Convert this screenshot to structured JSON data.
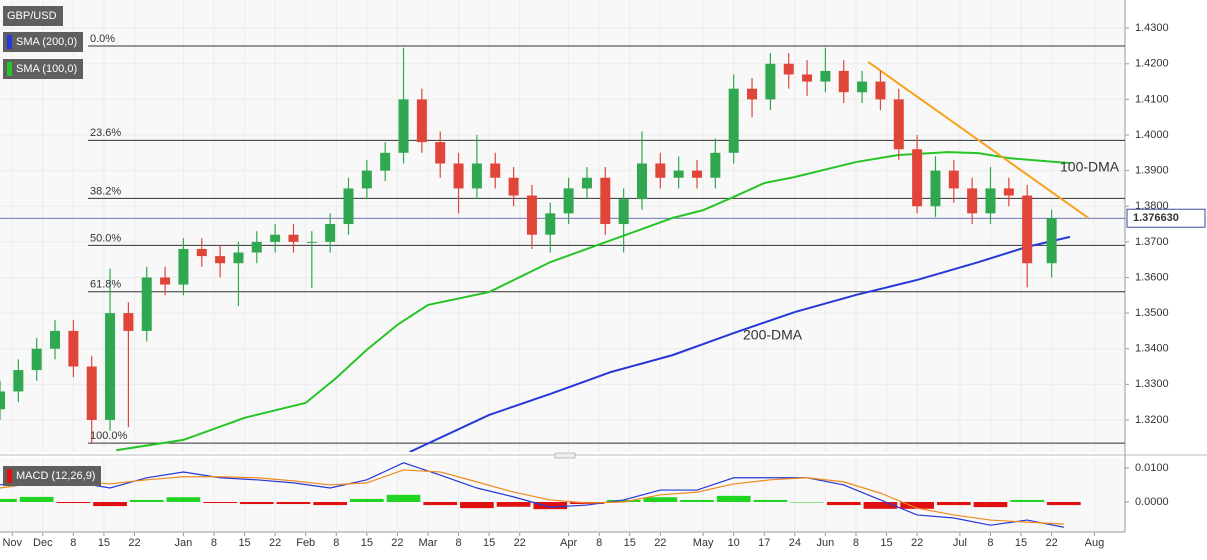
{
  "chart_data": [
    {
      "type": "candlestick",
      "title": "GBP/USD",
      "up_color": "#2fa84f",
      "down_color": "#e0453a",
      "x": [
        0,
        3,
        6,
        9,
        12,
        15,
        18,
        21,
        24,
        27,
        30,
        33,
        36,
        39,
        42,
        45,
        48,
        51,
        54,
        57,
        60,
        63,
        66,
        69,
        72,
        75,
        78,
        81,
        84,
        87,
        90,
        93,
        96,
        99,
        102,
        105,
        108,
        111,
        114,
        117,
        120,
        123,
        126,
        129,
        132,
        135,
        138,
        141,
        144,
        147,
        150,
        153,
        156,
        159,
        162,
        165,
        168,
        172
      ],
      "open": [
        1.323,
        1.328,
        1.334,
        1.34,
        1.345,
        1.335,
        1.32,
        1.35,
        1.345,
        1.36,
        1.358,
        1.368,
        1.366,
        1.364,
        1.367,
        1.37,
        1.372,
        1.37,
        1.37,
        1.375,
        1.385,
        1.39,
        1.395,
        1.41,
        1.398,
        1.392,
        1.385,
        1.392,
        1.388,
        1.383,
        1.372,
        1.378,
        1.385,
        1.388,
        1.375,
        1.382,
        1.392,
        1.388,
        1.39,
        1.388,
        1.395,
        1.413,
        1.41,
        1.42,
        1.417,
        1.415,
        1.418,
        1.412,
        1.415,
        1.41,
        1.396,
        1.38,
        1.39,
        1.385,
        1.378,
        1.385,
        1.383,
        1.364
      ],
      "high": [
        1.331,
        1.337,
        1.343,
        1.348,
        1.348,
        1.338,
        1.3625,
        1.353,
        1.363,
        1.363,
        1.371,
        1.371,
        1.369,
        1.37,
        1.373,
        1.375,
        1.375,
        1.373,
        1.378,
        1.388,
        1.393,
        1.398,
        1.4245,
        1.413,
        1.401,
        1.395,
        1.4,
        1.395,
        1.391,
        1.386,
        1.381,
        1.388,
        1.391,
        1.391,
        1.385,
        1.401,
        1.395,
        1.394,
        1.393,
        1.399,
        1.417,
        1.416,
        1.423,
        1.423,
        1.421,
        1.4245,
        1.421,
        1.418,
        1.418,
        1.413,
        1.4,
        1.394,
        1.393,
        1.388,
        1.391,
        1.388,
        1.386,
        1.379
      ],
      "low": [
        1.32,
        1.325,
        1.331,
        1.337,
        1.332,
        1.3135,
        1.317,
        1.318,
        1.342,
        1.355,
        1.355,
        1.363,
        1.36,
        1.352,
        1.364,
        1.367,
        1.367,
        1.357,
        1.367,
        1.372,
        1.382,
        1.387,
        1.392,
        1.395,
        1.388,
        1.378,
        1.382,
        1.385,
        1.38,
        1.368,
        1.367,
        1.375,
        1.382,
        1.372,
        1.367,
        1.379,
        1.385,
        1.385,
        1.385,
        1.385,
        1.392,
        1.405,
        1.407,
        1.413,
        1.411,
        1.412,
        1.409,
        1.409,
        1.407,
        1.393,
        1.378,
        1.377,
        1.381,
        1.375,
        1.375,
        1.38,
        1.3572,
        1.36
      ],
      "close": [
        1.328,
        1.334,
        1.34,
        1.345,
        1.335,
        1.32,
        1.35,
        1.345,
        1.36,
        1.358,
        1.368,
        1.366,
        1.364,
        1.367,
        1.37,
        1.372,
        1.37,
        1.37,
        1.375,
        1.385,
        1.39,
        1.395,
        1.41,
        1.398,
        1.392,
        1.385,
        1.392,
        1.388,
        1.383,
        1.372,
        1.378,
        1.385,
        1.388,
        1.375,
        1.382,
        1.392,
        1.388,
        1.39,
        1.388,
        1.395,
        1.413,
        1.41,
        1.42,
        1.417,
        1.415,
        1.418,
        1.412,
        1.415,
        1.41,
        1.396,
        1.38,
        1.39,
        1.385,
        1.378,
        1.385,
        1.383,
        1.364,
        1.37663
      ],
      "series": [
        {
          "name": "SMA (200,0)",
          "color": "#2639d8",
          "x": [
            67,
            80,
            90,
            100,
            110,
            120,
            130,
            140,
            150,
            160,
            168,
            175
          ],
          "values": [
            1.311,
            1.3214,
            1.3273,
            1.3335,
            1.3382,
            1.3444,
            1.3503,
            1.3551,
            1.3593,
            1.3643,
            1.3686,
            1.3714
          ]
        },
        {
          "name": "SMA (100,0)",
          "color": "#27c427",
          "x": [
            19,
            30,
            40,
            50,
            55,
            60,
            65,
            70,
            80,
            90,
            100,
            110,
            115,
            120,
            125,
            130,
            140,
            147,
            155,
            160,
            165,
            175
          ],
          "values": [
            1.3115,
            1.3144,
            1.3206,
            1.3248,
            1.3318,
            1.3397,
            1.3467,
            1.3523,
            1.3559,
            1.3643,
            1.3705,
            1.3767,
            1.3789,
            1.3826,
            1.3865,
            1.3882,
            1.3924,
            1.3944,
            1.3952,
            1.3949,
            1.3935,
            1.3921
          ]
        }
      ],
      "trendline": {
        "color": "#f7a21b",
        "x": [
          142,
          178
        ],
        "values": [
          1.4205,
          1.3767
        ]
      },
      "annotations": [
        {
          "text": "100-DMA",
          "color": "#27c427"
        },
        {
          "text": "200-DMA",
          "color": "#5a5adc"
        }
      ],
      "fib_levels": [
        {
          "value": 1.425,
          "label": "0.0%"
        },
        {
          "value": 1.3985,
          "label": "23.6%"
        },
        {
          "value": 1.3822,
          "label": "38.2%"
        },
        {
          "value": 1.369,
          "label": "50.0%"
        },
        {
          "value": 1.356,
          "label": "61.8%"
        },
        {
          "value": 1.3135,
          "label": "100.0%"
        }
      ],
      "last_price": {
        "value": 1.37663,
        "label": "1.376630"
      },
      "xlim": [
        0,
        184
      ],
      "ylim": [
        1.311,
        1.4379
      ],
      "xticks": [
        {
          "value": 2,
          "label": "Nov"
        },
        {
          "value": 7,
          "label": "Dec"
        },
        {
          "value": 12,
          "label": "8"
        },
        {
          "value": 17,
          "label": "15"
        },
        {
          "value": 22,
          "label": "22"
        },
        {
          "value": 30,
          "label": "Jan"
        },
        {
          "value": 35,
          "label": "8"
        },
        {
          "value": 40,
          "label": "15"
        },
        {
          "value": 45,
          "label": "22"
        },
        {
          "value": 50,
          "label": "Feb"
        },
        {
          "value": 55,
          "label": "8"
        },
        {
          "value": 60,
          "label": "15"
        },
        {
          "value": 65,
          "label": "22"
        },
        {
          "value": 70,
          "label": "Mar"
        },
        {
          "value": 75,
          "label": "8"
        },
        {
          "value": 80,
          "label": "15"
        },
        {
          "value": 85,
          "label": "22"
        },
        {
          "value": 93,
          "label": "Apr"
        },
        {
          "value": 98,
          "label": "8"
        },
        {
          "value": 103,
          "label": "15"
        },
        {
          "value": 108,
          "label": "22"
        },
        {
          "value": 115,
          "label": "May"
        },
        {
          "value": 120,
          "label": "10"
        },
        {
          "value": 125,
          "label": "17"
        },
        {
          "value": 130,
          "label": "24"
        },
        {
          "value": 135,
          "label": "Jun"
        },
        {
          "value": 140,
          "label": "8"
        },
        {
          "value": 145,
          "label": "15"
        },
        {
          "value": 150,
          "label": "22"
        },
        {
          "value": 157,
          "label": "Jul"
        },
        {
          "value": 162,
          "label": "8"
        },
        {
          "value": 167,
          "label": "15"
        },
        {
          "value": 172,
          "label": "22"
        },
        {
          "value": 179,
          "label": "Aug"
        }
      ],
      "yticks": [
        {
          "value": 1.32,
          "label": "1.3200"
        },
        {
          "value": 1.33,
          "label": "1.3300"
        },
        {
          "value": 1.34,
          "label": "1.3400"
        },
        {
          "value": 1.35,
          "label": "1.3500"
        },
        {
          "value": 1.36,
          "label": "1.3600"
        },
        {
          "value": 1.37,
          "label": "1.3700"
        },
        {
          "value": 1.38,
          "label": "1.3800"
        },
        {
          "value": 1.39,
          "label": "1.3900"
        },
        {
          "value": 1.4,
          "label": "1.4000"
        },
        {
          "value": 1.41,
          "label": "1.4100"
        },
        {
          "value": 1.42,
          "label": "1.4200"
        },
        {
          "value": 1.43,
          "label": "1.4300"
        }
      ],
      "grid": true
    },
    {
      "type": "macd",
      "title": "MACD (12,26,9)",
      "x": [
        0,
        6,
        12,
        18,
        24,
        30,
        36,
        42,
        48,
        54,
        60,
        66,
        72,
        78,
        84,
        90,
        96,
        102,
        108,
        114,
        120,
        126,
        132,
        138,
        144,
        150,
        156,
        162,
        168,
        174
      ],
      "macd": {
        "color": "#2639d8",
        "values": [
          0.005,
          0.0071,
          0.0059,
          0.0041,
          0.0071,
          0.0088,
          0.0071,
          0.0065,
          0.0056,
          0.0041,
          0.0065,
          0.0115,
          0.0079,
          0.0041,
          0.0015,
          -0.0015,
          -0.0009,
          0.0006,
          0.0035,
          0.0035,
          0.0071,
          0.0071,
          0.0071,
          0.005,
          0.0006,
          -0.0038,
          -0.0047,
          -0.0068,
          -0.0053,
          -0.0074
        ]
      },
      "signal": {
        "color": "#f08a1c",
        "values": [
          0.0041,
          0.0056,
          0.0062,
          0.0053,
          0.0065,
          0.0074,
          0.0074,
          0.0071,
          0.0062,
          0.005,
          0.0056,
          0.0094,
          0.0088,
          0.0059,
          0.0029,
          0.0006,
          -0.0003,
          0,
          0.0021,
          0.0029,
          0.0053,
          0.0065,
          0.0071,
          0.0059,
          0.0026,
          -0.0018,
          -0.0038,
          -0.0053,
          -0.0059,
          -0.0065
        ]
      },
      "histogram": {
        "up_color": "#22d422",
        "down_color": "#e01010",
        "values": [
          0.0009,
          0.0015,
          -0.0003,
          -0.0012,
          0.0006,
          0.0014,
          -0.0003,
          -0.0006,
          -0.0006,
          -0.0009,
          0.0009,
          0.0021,
          -0.0009,
          -0.0018,
          -0.0014,
          -0.0021,
          -0.0006,
          0.0006,
          0.0014,
          0.0006,
          0.0018,
          0.0006,
          0,
          -0.0009,
          -0.002,
          -0.002,
          -0.0009,
          -0.0015,
          0.0006,
          -0.0009
        ]
      },
      "ylim": [
        -0.0088,
        0.0129
      ],
      "yticks": [
        {
          "value": 0.01,
          "label": "0.0100"
        },
        {
          "value": 0,
          "label": "0.0000"
        }
      ]
    }
  ]
}
